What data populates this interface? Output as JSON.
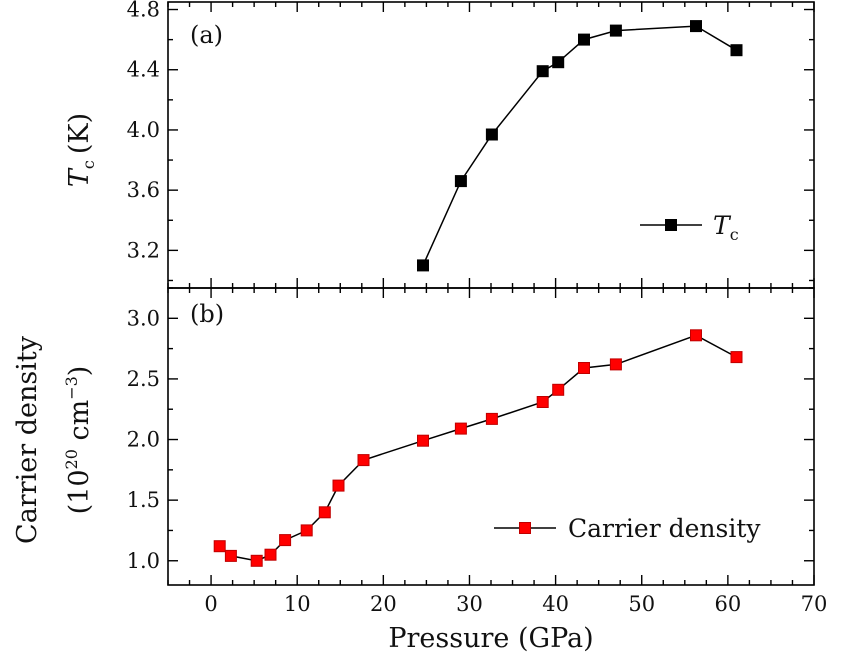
{
  "chart_data": [
    {
      "panel_label": "(a)",
      "type": "line",
      "ylabel_symbol": "T",
      "ylabel_sub": "c",
      "ylabel_unit": "(K)",
      "ylim": [
        2.95,
        4.85
      ],
      "yticks": [
        3.2,
        3.6,
        4.0,
        4.4,
        4.8
      ],
      "ytick_labels": [
        "3.2",
        "3.6",
        "4.0",
        "4.4",
        "4.8"
      ],
      "legend": {
        "symbol": "T",
        "sub": "c",
        "position": "lower-right"
      },
      "series": [
        {
          "name": "Tc",
          "color": "#000000",
          "marker": "square",
          "x": [
            24.6,
            29.0,
            32.6,
            38.5,
            40.3,
            43.3,
            47.0,
            56.3,
            61.0
          ],
          "y": [
            3.1,
            3.66,
            3.97,
            4.39,
            4.45,
            4.6,
            4.66,
            4.69,
            4.53
          ]
        }
      ]
    },
    {
      "panel_label": "(b)",
      "type": "line",
      "ylabel_line1": "Carrier density",
      "ylabel_line2_prefix": "(10",
      "ylabel_sup1": "20",
      "ylabel_mid": " cm",
      "ylabel_sup2": "−3",
      "ylabel_suffix": ")",
      "xlabel": "Pressure (GPa)",
      "xlim": [
        -5,
        70
      ],
      "xticks": [
        0,
        10,
        20,
        30,
        40,
        50,
        60,
        70
      ],
      "xtick_labels": [
        "0",
        "10",
        "20",
        "30",
        "40",
        "50",
        "60",
        "70"
      ],
      "ylim": [
        0.8,
        3.25
      ],
      "yticks": [
        1.0,
        1.5,
        2.0,
        2.5,
        3.0
      ],
      "ytick_labels": [
        "1.0",
        "1.5",
        "2.0",
        "2.5",
        "3.0"
      ],
      "legend": {
        "label": "Carrier density",
        "position": "lower-right"
      },
      "series": [
        {
          "name": "Carrier density",
          "color": "#ff0000",
          "marker": "square",
          "x": [
            1.0,
            2.3,
            5.3,
            6.9,
            8.6,
            11.1,
            13.2,
            14.8,
            17.7,
            24.6,
            29.0,
            32.6,
            38.5,
            40.3,
            43.3,
            47.0,
            56.3,
            61.0
          ],
          "y": [
            1.12,
            1.04,
            1.0,
            1.05,
            1.17,
            1.25,
            1.4,
            1.62,
            1.83,
            1.99,
            2.09,
            2.17,
            2.31,
            2.41,
            2.59,
            2.62,
            2.86,
            2.68
          ]
        }
      ]
    }
  ]
}
